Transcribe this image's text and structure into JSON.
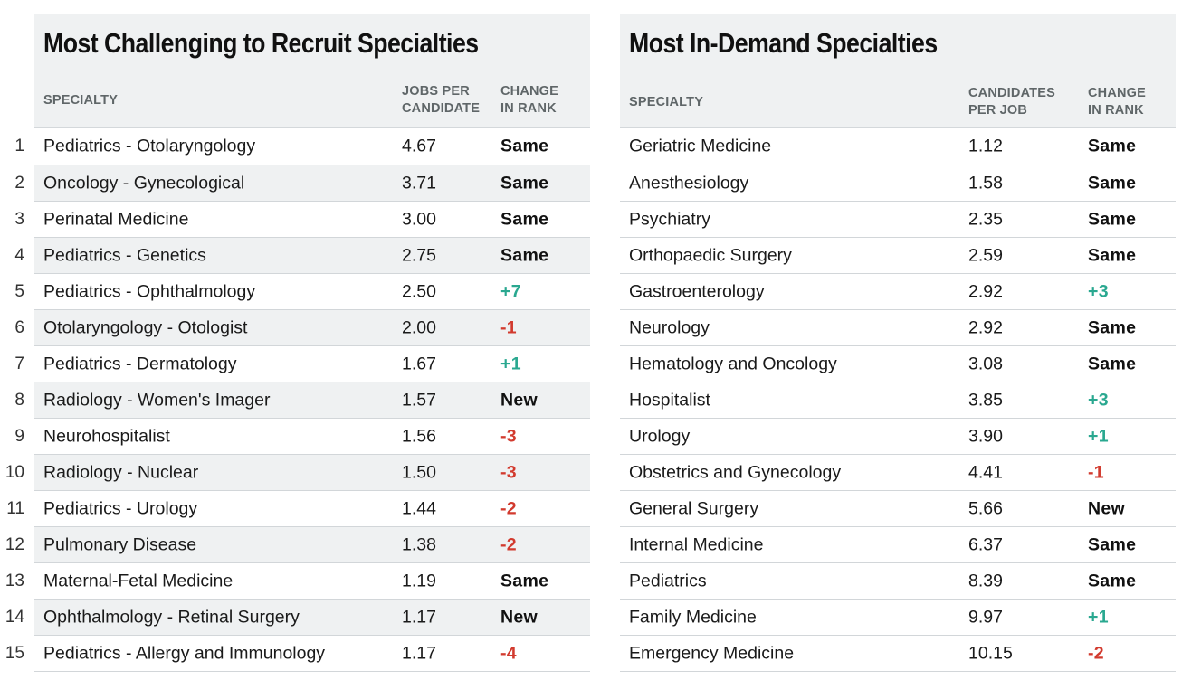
{
  "left": {
    "title": "Most Challenging to Recruit Specialties",
    "headers": {
      "specialty": "SPECIALTY",
      "metric_l1": "JOBS PER",
      "metric_l2": "CANDIDATE",
      "change_l1": "CHANGE",
      "change_l2": "IN RANK"
    },
    "rows": [
      {
        "rank": "1",
        "specialty": "Pediatrics - Otolaryngology",
        "value": "4.67",
        "change": "Same",
        "dir": "same"
      },
      {
        "rank": "2",
        "specialty": "Oncology - Gynecological",
        "value": "3.71",
        "change": "Same",
        "dir": "same"
      },
      {
        "rank": "3",
        "specialty": "Perinatal Medicine",
        "value": "3.00",
        "change": "Same",
        "dir": "same"
      },
      {
        "rank": "4",
        "specialty": "Pediatrics - Genetics",
        "value": "2.75",
        "change": "Same",
        "dir": "same"
      },
      {
        "rank": "5",
        "specialty": "Pediatrics - Ophthalmology",
        "value": "2.50",
        "change": "+7",
        "dir": "up"
      },
      {
        "rank": "6",
        "specialty": "Otolaryngology - Otologist",
        "value": "2.00",
        "change": "-1",
        "dir": "down"
      },
      {
        "rank": "7",
        "specialty": "Pediatrics - Dermatology",
        "value": "1.67",
        "change": "+1",
        "dir": "up"
      },
      {
        "rank": "8",
        "specialty": "Radiology - Women's Imager",
        "value": "1.57",
        "change": "New",
        "dir": "same"
      },
      {
        "rank": "9",
        "specialty": "Neurohospitalist",
        "value": "1.56",
        "change": "-3",
        "dir": "down"
      },
      {
        "rank": "10",
        "specialty": "Radiology - Nuclear",
        "value": "1.50",
        "change": "-3",
        "dir": "down"
      },
      {
        "rank": "11",
        "specialty": "Pediatrics - Urology",
        "value": "1.44",
        "change": "-2",
        "dir": "down"
      },
      {
        "rank": "12",
        "specialty": "Pulmonary Disease",
        "value": "1.38",
        "change": "-2",
        "dir": "down"
      },
      {
        "rank": "13",
        "specialty": "Maternal-Fetal Medicine",
        "value": "1.19",
        "change": "Same",
        "dir": "same"
      },
      {
        "rank": "14",
        "specialty": "Ophthalmology - Retinal Surgery",
        "value": "1.17",
        "change": "New",
        "dir": "same"
      },
      {
        "rank": "15",
        "specialty": "Pediatrics - Allergy and Immunology",
        "value": "1.17",
        "change": "-4",
        "dir": "down"
      }
    ]
  },
  "right": {
    "title": "Most In-Demand Specialties",
    "headers": {
      "specialty": "SPECIALTY",
      "metric_l1": "CANDIDATES",
      "metric_l2": "PER JOB",
      "change_l1": "CHANGE",
      "change_l2": "IN RANK"
    },
    "rows": [
      {
        "specialty": "Geriatric Medicine",
        "value": "1.12",
        "change": "Same",
        "dir": "same"
      },
      {
        "specialty": "Anesthesiology",
        "value": "1.58",
        "change": "Same",
        "dir": "same"
      },
      {
        "specialty": "Psychiatry",
        "value": "2.35",
        "change": "Same",
        "dir": "same"
      },
      {
        "specialty": "Orthopaedic Surgery",
        "value": "2.59",
        "change": "Same",
        "dir": "same"
      },
      {
        "specialty": "Gastroenterology",
        "value": "2.92",
        "change": "+3",
        "dir": "up"
      },
      {
        "specialty": "Neurology",
        "value": "2.92",
        "change": "Same",
        "dir": "same"
      },
      {
        "specialty": "Hematology and Oncology",
        "value": "3.08",
        "change": "Same",
        "dir": "same"
      },
      {
        "specialty": "Hospitalist",
        "value": "3.85",
        "change": "+3",
        "dir": "up"
      },
      {
        "specialty": "Urology",
        "value": "3.90",
        "change": "+1",
        "dir": "up"
      },
      {
        "specialty": "Obstetrics and Gynecology",
        "value": "4.41",
        "change": "-1",
        "dir": "down"
      },
      {
        "specialty": "General Surgery",
        "value": "5.66",
        "change": "New",
        "dir": "same"
      },
      {
        "specialty": "Internal Medicine",
        "value": "6.37",
        "change": "Same",
        "dir": "same"
      },
      {
        "specialty": "Pediatrics",
        "value": "8.39",
        "change": "Same",
        "dir": "same"
      },
      {
        "specialty": "Family Medicine",
        "value": "9.97",
        "change": "+1",
        "dir": "up"
      },
      {
        "specialty": "Emergency Medicine",
        "value": "10.15",
        "change": "-2",
        "dir": "down"
      }
    ]
  },
  "colors": {
    "header_bg": "#eff1f2",
    "up": "#2aa890",
    "down": "#d23a2e",
    "header_text": "#5f6668"
  }
}
